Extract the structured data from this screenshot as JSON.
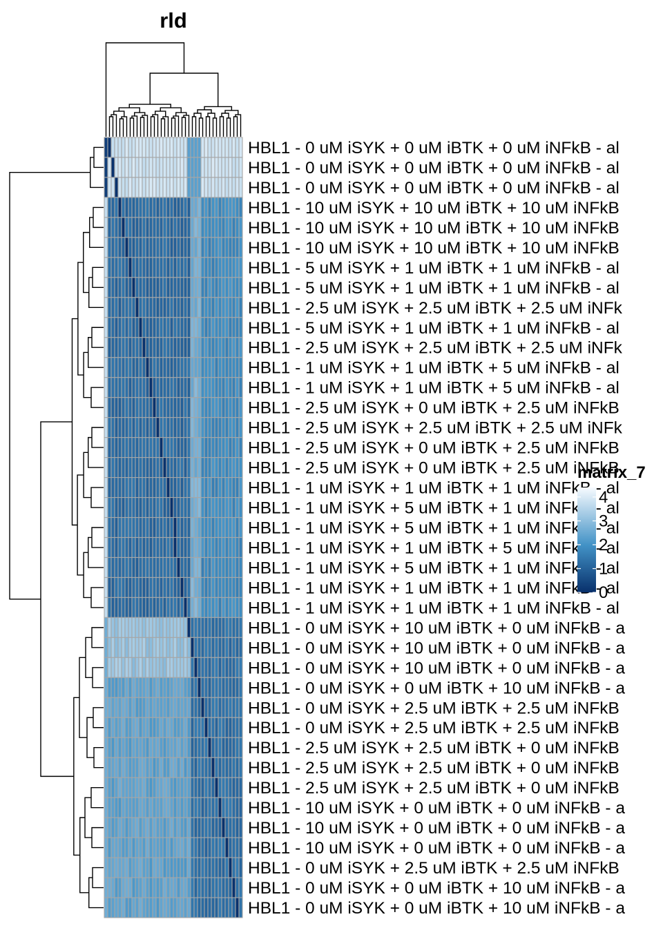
{
  "chart_data": {
    "type": "heatmap",
    "title": "rld",
    "n_columns": 40,
    "rows": [
      "HBL1 - 0 uM iSYK + 0 uM iBTK + 0 uM iNFkB - al",
      "HBL1 - 0 uM iSYK + 0 uM iBTK + 0 uM iNFkB - al",
      "HBL1 - 0 uM iSYK + 0 uM iBTK + 0 uM iNFkB - al",
      "HBL1 - 10 uM iSYK + 10 uM iBTK + 10 uM iNFkB",
      "HBL1 - 10 uM iSYK + 10 uM iBTK + 10 uM iNFkB",
      "HBL1 - 10 uM iSYK + 10 uM iBTK + 10 uM iNFkB",
      "HBL1 - 5 uM iSYK + 1 uM iBTK + 1 uM iNFkB - al",
      "HBL1 - 5 uM iSYK + 1 uM iBTK + 1 uM iNFkB - al",
      "HBL1 - 2.5 uM iSYK + 2.5 uM iBTK + 2.5 uM iNFk",
      "HBL1 - 5 uM iSYK + 1 uM iBTK + 1 uM iNFkB - al",
      "HBL1 - 2.5 uM iSYK + 2.5 uM iBTK + 2.5 uM iNFk",
      "HBL1 - 1 uM iSYK + 1 uM iBTK + 5 uM iNFkB - al",
      "HBL1 - 1 uM iSYK + 1 uM iBTK + 5 uM iNFkB - al",
      "HBL1 - 2.5 uM iSYK + 0 uM iBTK + 2.5 uM iNFkB",
      "HBL1 - 2.5 uM iSYK + 2.5 uM iBTK + 2.5 uM iNFk",
      "HBL1 - 2.5 uM iSYK + 0 uM iBTK + 2.5 uM iNFkB",
      "HBL1 - 2.5 uM iSYK + 0 uM iBTK + 2.5 uM iNFkB",
      "HBL1 - 1 uM iSYK + 1 uM iBTK + 1 uM iNFkB - al",
      "HBL1 - 1 uM iSYK + 5 uM iBTK + 1 uM iNFkB - al",
      "HBL1 - 1 uM iSYK + 5 uM iBTK + 1 uM iNFkB - al",
      "HBL1 - 1 uM iSYK + 1 uM iBTK + 5 uM iNFkB - al",
      "HBL1 - 1 uM iSYK + 5 uM iBTK + 1 uM iNFkB - al",
      "HBL1 - 1 uM iSYK + 1 uM iBTK + 1 uM iNFkB - al",
      "HBL1 - 1 uM iSYK + 1 uM iBTK + 1 uM iNFkB - al",
      "HBL1 - 0 uM iSYK + 10 uM iBTK + 0 uM iNFkB - a",
      "HBL1 - 0 uM iSYK + 10 uM iBTK + 0 uM iNFkB - a",
      "HBL1 - 0 uM iSYK + 10 uM iBTK + 0 uM iNFkB - a",
      "HBL1 - 0 uM iSYK + 0 uM iBTK + 10 uM iNFkB - a",
      "HBL1 - 0 uM iSYK + 2.5 uM iBTK + 2.5 uM iNFkB",
      "HBL1 - 0 uM iSYK + 2.5 uM iBTK + 2.5 uM iNFkB",
      "HBL1 - 2.5 uM iSYK + 2.5 uM iBTK + 0 uM iNFkB",
      "HBL1 - 2.5 uM iSYK + 2.5 uM iBTK + 0 uM iNFkB",
      "HBL1 - 2.5 uM iSYK + 2.5 uM iBTK + 0 uM iNFkB",
      "HBL1 - 10 uM iSYK + 0 uM iBTK + 0 uM iNFkB - a",
      "HBL1 - 10 uM iSYK + 0 uM iBTK + 0 uM iNFkB - a",
      "HBL1 - 10 uM iSYK + 0 uM iBTK + 0 uM iNFkB - a",
      "HBL1 - 0 uM iSYK + 2.5 uM iBTK + 2.5 uM iNFkB",
      "HBL1 - 0 uM iSYK + 0 uM iBTK + 10 uM iNFkB - a",
      "HBL1 - 0 uM iSYK + 0 uM iBTK + 10 uM iNFkB - a"
    ],
    "legend": {
      "title": "matrix_7",
      "ticks": [
        "4",
        "3",
        "2",
        "1",
        "0"
      ],
      "range": [
        0,
        4.4
      ],
      "color_low": "#08306b",
      "color_mid": "#4292c6",
      "color_high": "#f7fbff"
    },
    "cell_border_color": "#a6a6a6"
  }
}
